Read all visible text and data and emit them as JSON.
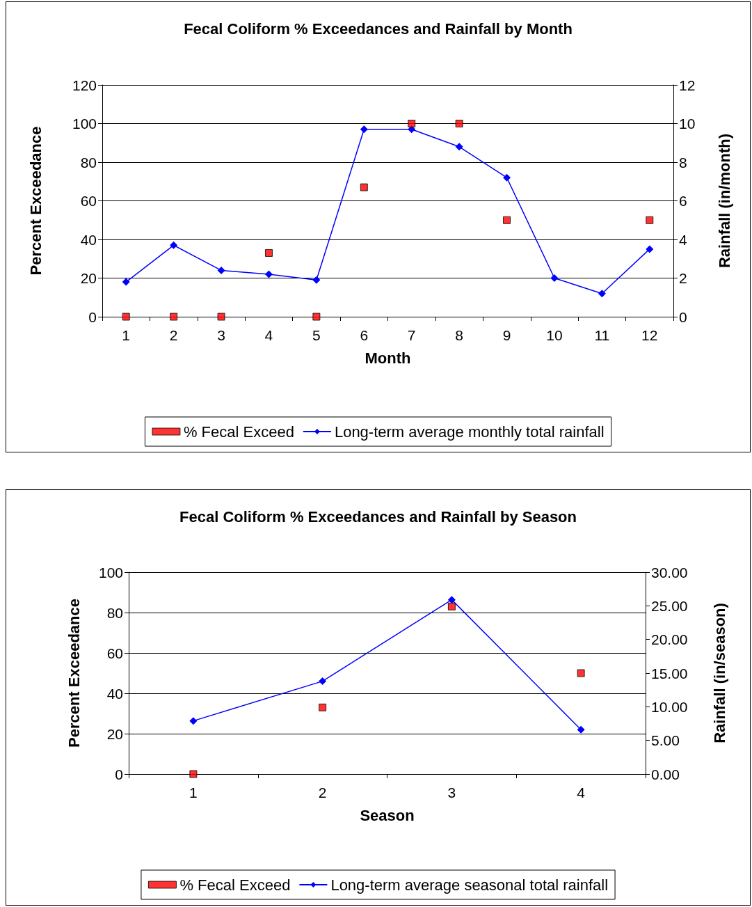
{
  "chart_data": [
    {
      "type": "line",
      "title": "Fecal Coliform % Exceedances and Rainfall by Month",
      "xlabel": "Month",
      "ylabel": "Percent Exceedance",
      "y2label": "Rainfall (in/month)",
      "categories": [
        "1",
        "2",
        "3",
        "4",
        "5",
        "6",
        "7",
        "8",
        "9",
        "10",
        "11",
        "12"
      ],
      "series": [
        {
          "name": "% Fecal Exceed",
          "type": "scatter",
          "marker": "square",
          "color": "#ff0000",
          "values": [
            0,
            0,
            0,
            33,
            0,
            67,
            100,
            100,
            50,
            null,
            null,
            50
          ]
        },
        {
          "name": "Long-term average monthly total rainfall",
          "marker": "diamond",
          "axis": "y2",
          "color": "#0000ff",
          "values": [
            1.8,
            3.7,
            2.4,
            2.2,
            1.9,
            9.7,
            9.7,
            8.8,
            7.2,
            2.0,
            1.2,
            3.5
          ]
        }
      ],
      "ylim": [
        0,
        120
      ],
      "yticks": [
        0,
        20,
        40,
        60,
        80,
        100,
        120
      ],
      "y2lim": [
        0,
        12
      ],
      "y2ticks": [
        0,
        2,
        4,
        6,
        8,
        10,
        12
      ],
      "grid": "y",
      "legend": "bottom"
    },
    {
      "type": "line",
      "title": "Fecal Coliform % Exceedances and Rainfall by Season",
      "xlabel": "Season",
      "ylabel": "Percent Exceedance",
      "y2label": "Rainfall (in/season)",
      "categories": [
        "1",
        "2",
        "3",
        "4"
      ],
      "series": [
        {
          "name": "% Fecal Exceed",
          "type": "scatter",
          "marker": "square",
          "color": "#ff0000",
          "values": [
            0,
            33,
            83,
            50
          ]
        },
        {
          "name": "Long-term average seasonal total rainfall",
          "marker": "diamond",
          "axis": "y2",
          "color": "#0000ff",
          "values": [
            7.9,
            13.8,
            25.9,
            6.6
          ]
        }
      ],
      "ylim": [
        0,
        100
      ],
      "yticks": [
        0,
        20,
        40,
        60,
        80,
        100
      ],
      "y2lim": [
        0,
        30
      ],
      "y2ticks": [
        {
          "value": 0,
          "label": "0.00"
        },
        {
          "value": 5,
          "label": "5.00"
        },
        {
          "value": 10,
          "label": "10.00"
        },
        {
          "value": 15,
          "label": "15.00"
        },
        {
          "value": 20,
          "label": "20.00"
        },
        {
          "value": 25,
          "label": "25.00"
        },
        {
          "value": 30,
          "label": "30.00"
        }
      ],
      "grid": "y",
      "legend": "bottom"
    }
  ]
}
